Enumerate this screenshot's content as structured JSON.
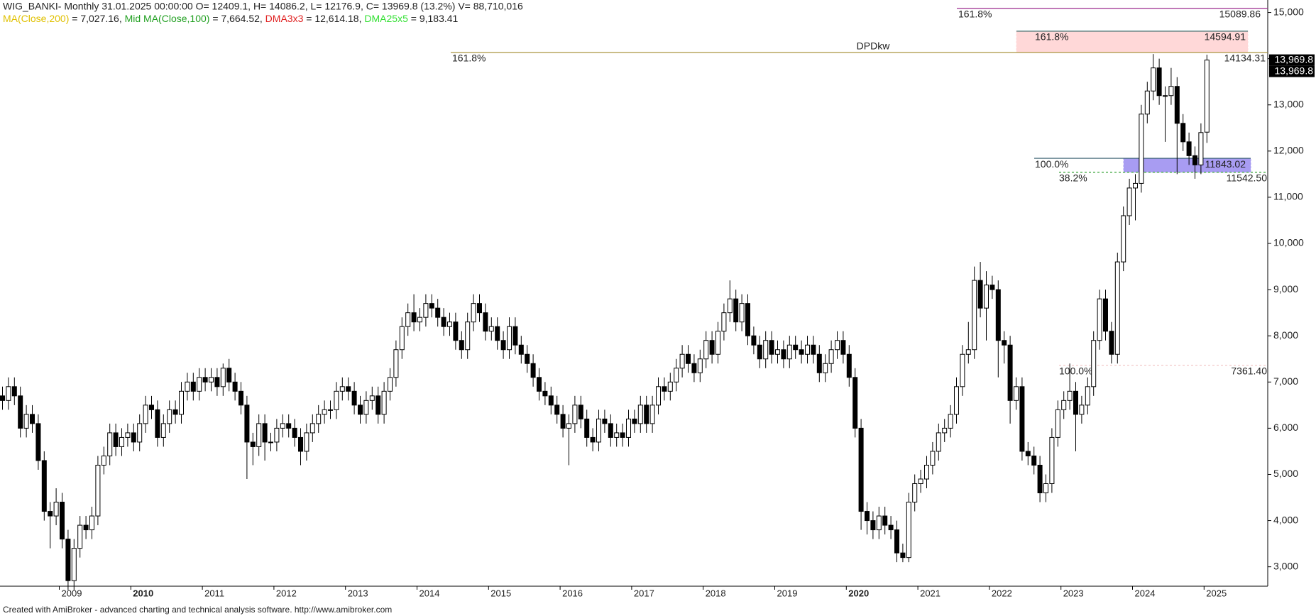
{
  "chart_data": {
    "type": "candlestick",
    "title": "WIG_BANKI- Monthly 31.01.2025 00:00:00 O= 12409.1, H= 14086.2, L= 12176.9, C= 13969.8 (13.2%) V= 88,710,016",
    "indicators": [
      {
        "name": "MA(Close,200)",
        "text": " = 7,027.16, ",
        "color": "#e0c000"
      },
      {
        "name": "Mid MA(Close,100)",
        "text": " = 7,664.52, ",
        "color": "#22a022"
      },
      {
        "name": "DMA3x3",
        "text": " = 12,614.18, ",
        "color": "#e02020"
      },
      {
        "name": "DMA25x5",
        "text": " = 9,183.41",
        "color": "#33e033"
      }
    ],
    "categories": [
      null,
      null,
      null,
      null,
      null,
      null,
      null,
      null,
      null,
      null,
      "2009",
      null,
      null,
      null,
      null,
      null,
      null,
      null,
      null,
      null,
      null,
      null,
      "2010",
      null,
      null,
      null,
      null,
      null,
      null,
      null,
      null,
      null,
      null,
      null,
      "2011",
      null,
      null,
      null,
      null,
      null,
      null,
      null,
      null,
      null,
      null,
      null,
      "2012",
      null,
      null,
      null,
      null,
      null,
      null,
      null,
      null,
      null,
      null,
      null,
      "2013",
      null,
      null,
      null,
      null,
      null,
      null,
      null,
      null,
      null,
      null,
      null,
      "2014",
      null,
      null,
      null,
      null,
      null,
      null,
      null,
      null,
      null,
      null,
      null,
      "2015",
      null,
      null,
      null,
      null,
      null,
      null,
      null,
      null,
      null,
      null,
      null,
      "2016",
      null,
      null,
      null,
      null,
      null,
      null,
      null,
      null,
      null,
      null,
      null,
      "2017",
      null,
      null,
      null,
      null,
      null,
      null,
      null,
      null,
      null,
      null,
      null,
      "2018",
      null,
      null,
      null,
      null,
      null,
      null,
      null,
      null,
      null,
      null,
      null,
      "2019",
      null,
      null,
      null,
      null,
      null,
      null,
      null,
      null,
      null,
      null,
      null,
      "2020",
      null,
      null,
      null,
      null,
      null,
      null,
      null,
      null,
      null,
      null,
      null,
      "2021",
      null,
      null,
      null,
      null,
      null,
      null,
      null,
      null,
      null,
      null,
      null,
      "2022",
      null,
      null,
      null,
      null,
      null,
      null,
      null,
      null,
      null,
      null,
      null,
      "2023",
      null,
      null,
      null,
      null,
      null,
      null,
      null,
      null,
      null,
      null,
      null,
      "2024",
      null,
      null,
      null,
      null,
      null,
      null,
      null,
      null,
      null,
      null,
      null,
      "2025"
    ],
    "open": [
      6700,
      6600,
      6900,
      6700,
      6000,
      6300,
      6100,
      5300,
      4200,
      4100,
      4400,
      3600,
      2700,
      3400,
      3900,
      3800,
      4100,
      5200,
      5400,
      5900,
      5600,
      5800,
      5900,
      5700,
      6100,
      6500,
      6400,
      5800,
      6100,
      6400,
      6300,
      6800,
      7000,
      6800,
      7100,
      7000,
      7100,
      6900,
      7300,
      7000,
      6800,
      6500,
      5700,
      5600,
      6100,
      5700,
      5700,
      6000,
      6100,
      6000,
      5800,
      5500,
      5900,
      6100,
      6300,
      6400,
      6400,
      6800,
      6900,
      6800,
      6500,
      6300,
      6600,
      6700,
      6300,
      6800,
      7100,
      7700,
      8200,
      8500,
      8300,
      8400,
      8700,
      8600,
      8400,
      8200,
      8300,
      7900,
      7700,
      8300,
      8700,
      8500,
      8100,
      8200,
      7900,
      7700,
      8200,
      7800,
      7600,
      7400,
      7100,
      6800,
      6700,
      6500,
      6300,
      6000,
      6100,
      6500,
      6200,
      5800,
      5700,
      6200,
      6100,
      5800,
      5900,
      5800,
      6200,
      6100,
      6500,
      6100,
      6500,
      6900,
      6800,
      7000,
      7300,
      7600,
      7400,
      7200,
      7500,
      7900,
      7600,
      8100,
      8500,
      8800,
      8300,
      8700,
      8000,
      7800,
      7500,
      7900,
      7600,
      7700,
      7500,
      7800,
      7700,
      7600,
      7800,
      7600,
      7200,
      7400,
      7700,
      7900,
      7600,
      7100,
      6000,
      4200,
      4000,
      3800,
      4100,
      3900,
      3800,
      3300,
      3200,
      4400,
      4800,
      4900,
      5200,
      5500,
      5900,
      6000,
      6300,
      6900,
      7600,
      7700,
      9200,
      8600,
      9100,
      9000,
      7900,
      7800,
      6600,
      6900,
      5500,
      5400,
      5200,
      4600,
      4800,
      5800,
      6400,
      6600,
      6800,
      6300,
      6500,
      6900,
      7900,
      8800,
      8100,
      7600,
      9600,
      10600,
      11200,
      11300,
      12800,
      13300,
      13800,
      13200,
      13200,
      13400,
      12600,
      12200,
      11900,
      11700,
      12409.1
    ],
    "high": [
      6900,
      7100,
      7100,
      6900,
      6500,
      6500,
      6300,
      5500,
      4400,
      4700,
      4600,
      3800,
      3600,
      4100,
      4100,
      4300,
      5400,
      5600,
      6100,
      6100,
      6000,
      6100,
      6100,
      6300,
      6700,
      6700,
      6600,
      6300,
      6600,
      6600,
      7000,
      7200,
      7200,
      7300,
      7300,
      7300,
      7300,
      7400,
      7500,
      7200,
      7000,
      6700,
      5900,
      6300,
      6300,
      5900,
      6200,
      6300,
      6300,
      6200,
      6000,
      6100,
      6300,
      6500,
      6600,
      6600,
      7000,
      7100,
      7100,
      7000,
      6700,
      6800,
      6900,
      6900,
      7000,
      7300,
      7900,
      8400,
      8700,
      8900,
      8600,
      8900,
      8900,
      8800,
      8600,
      8500,
      8500,
      8100,
      8500,
      8900,
      8900,
      8700,
      8400,
      8400,
      8100,
      8400,
      8400,
      8000,
      7800,
      7600,
      7300,
      7000,
      6900,
      6700,
      6500,
      6300,
      6700,
      6700,
      6400,
      6000,
      6400,
      6400,
      6300,
      6100,
      6100,
      6400,
      6400,
      6700,
      6700,
      6700,
      7100,
      7100,
      7200,
      7500,
      7800,
      7800,
      7600,
      7700,
      8100,
      8100,
      8300,
      8700,
      9200,
      9000,
      8900,
      8900,
      8200,
      8000,
      8100,
      8100,
      7900,
      7900,
      8000,
      8000,
      7900,
      8000,
      8000,
      7800,
      7600,
      7900,
      8100,
      8100,
      7800,
      7300,
      6200,
      4400,
      4200,
      4300,
      4300,
      4100,
      4000,
      3500,
      4600,
      5000,
      5100,
      5400,
      5700,
      6100,
      6200,
      6500,
      7100,
      7800,
      8300,
      9500,
      9600,
      9400,
      9300,
      9200,
      8100,
      8000,
      7100,
      7100,
      5700,
      5600,
      5400,
      5000,
      6000,
      6600,
      6800,
      7400,
      7000,
      6700,
      7100,
      8100,
      9000,
      9000,
      8300,
      9800,
      10800,
      11400,
      11500,
      13000,
      13500,
      14100,
      14000,
      13400,
      13800,
      13600,
      12800,
      12400,
      12100,
      12600,
      14086.2
    ],
    "low": [
      6400,
      6400,
      6500,
      5800,
      5800,
      5900,
      5100,
      4000,
      3400,
      3900,
      3400,
      2500,
      2500,
      3200,
      3600,
      3600,
      3900,
      5000,
      5200,
      5400,
      5400,
      5600,
      5500,
      5500,
      5900,
      6200,
      5600,
      5600,
      5900,
      6100,
      6100,
      6600,
      6600,
      6600,
      6800,
      6800,
      6700,
      6700,
      6800,
      6600,
      6300,
      4900,
      5200,
      5400,
      5300,
      5500,
      5500,
      5800,
      5800,
      5600,
      5200,
      5300,
      5700,
      5900,
      6100,
      6200,
      6200,
      6600,
      6600,
      6300,
      6100,
      6100,
      6400,
      6100,
      6100,
      6600,
      6900,
      7500,
      8000,
      8100,
      8100,
      8200,
      8400,
      8200,
      8000,
      8000,
      7700,
      7500,
      7500,
      8100,
      8300,
      7900,
      7900,
      7700,
      7500,
      7500,
      7600,
      7400,
      7200,
      6900,
      6600,
      6500,
      6300,
      6100,
      5800,
      5200,
      5900,
      6000,
      5600,
      5500,
      5500,
      5900,
      5600,
      5600,
      5600,
      5600,
      5900,
      5900,
      5900,
      5900,
      6300,
      6600,
      6600,
      6800,
      7100,
      7200,
      7000,
      7000,
      7300,
      7400,
      7400,
      7900,
      8300,
      8100,
      8100,
      7800,
      7600,
      7300,
      7300,
      7400,
      7400,
      7300,
      7300,
      7500,
      7400,
      7400,
      7400,
      7000,
      7000,
      7200,
      7500,
      7400,
      6900,
      5800,
      3800,
      3700,
      3600,
      3600,
      3700,
      3600,
      3100,
      3100,
      3100,
      4200,
      4600,
      4700,
      5000,
      5300,
      5700,
      5800,
      6100,
      6700,
      7400,
      7500,
      8400,
      7900,
      8800,
      7100,
      7400,
      6100,
      6400,
      5300,
      5200,
      5000,
      4400,
      4400,
      4600,
      5600,
      6200,
      6400,
      5500,
      6100,
      6300,
      6700,
      7700,
      7900,
      7400,
      7400,
      9400,
      10400,
      10500,
      11100,
      12600,
      13100,
      13000,
      12200,
      13000,
      11500,
      12000,
      11700,
      11400,
      11500,
      12176.9
    ],
    "close": [
      6600,
      6900,
      6700,
      6000,
      6300,
      6100,
      5300,
      4200,
      4100,
      4400,
      3600,
      2700,
      3400,
      3900,
      3800,
      4100,
      5200,
      5400,
      5900,
      5600,
      5800,
      5900,
      5700,
      6100,
      6500,
      6400,
      5800,
      6100,
      6400,
      6300,
      6800,
      7000,
      6800,
      7100,
      7000,
      7100,
      6900,
      7300,
      7000,
      6800,
      6500,
      5700,
      5600,
      6100,
      5700,
      5700,
      6000,
      6100,
      6000,
      5800,
      5500,
      5900,
      6100,
      6300,
      6400,
      6400,
      6800,
      6900,
      6800,
      6500,
      6300,
      6600,
      6700,
      6300,
      6800,
      7100,
      7700,
      8200,
      8500,
      8300,
      8400,
      8700,
      8600,
      8400,
      8200,
      8300,
      7900,
      7700,
      8300,
      8700,
      8500,
      8100,
      8200,
      7900,
      7700,
      8200,
      7800,
      7600,
      7400,
      7100,
      6800,
      6700,
      6500,
      6300,
      6000,
      6100,
      6500,
      6200,
      5800,
      5700,
      6200,
      6100,
      5800,
      5900,
      5800,
      6200,
      6100,
      6500,
      6100,
      6500,
      6900,
      6800,
      7000,
      7300,
      7600,
      7400,
      7200,
      7500,
      7900,
      7600,
      8100,
      8500,
      8800,
      8300,
      8700,
      8000,
      7800,
      7500,
      7900,
      7600,
      7700,
      7500,
      7800,
      7700,
      7600,
      7800,
      7600,
      7200,
      7400,
      7700,
      7900,
      7600,
      7100,
      6000,
      4200,
      4000,
      3800,
      4100,
      3900,
      3800,
      3300,
      3200,
      4400,
      4800,
      4900,
      5200,
      5500,
      5900,
      6000,
      6300,
      6900,
      7600,
      7700,
      9200,
      8600,
      9100,
      9000,
      7900,
      7800,
      6600,
      6900,
      5500,
      5400,
      5200,
      4600,
      4800,
      5800,
      6400,
      6600,
      6800,
      6300,
      6500,
      6900,
      7900,
      8800,
      8100,
      7600,
      9600,
      10600,
      11200,
      11300,
      12800,
      13300,
      13800,
      13200,
      13200,
      13400,
      12600,
      12200,
      11900,
      11700,
      12400,
      13969.8
    ],
    "up_color": "#ffffff",
    "down_color": "#000000",
    "ylim": [
      2580,
      15270
    ],
    "yticks": [
      {
        "value": 3000,
        "label": "3,000"
      },
      {
        "value": 4000,
        "label": "4,000"
      },
      {
        "value": 5000,
        "label": "5,000"
      },
      {
        "value": 6000,
        "label": "6,000"
      },
      {
        "value": 7000,
        "label": "7,000"
      },
      {
        "value": 8000,
        "label": "8,000"
      },
      {
        "value": 9000,
        "label": "9,000"
      },
      {
        "value": 10000,
        "label": "10,000"
      },
      {
        "value": 11000,
        "label": "11,000"
      },
      {
        "value": 12000,
        "label": "12,000"
      },
      {
        "value": 13000,
        "label": "13,000"
      },
      {
        "value": 14000,
        "label": "14,000"
      },
      {
        "value": 15000,
        "label": "15,000"
      }
    ],
    "levels": [
      {
        "label": "161.8%",
        "value": 15089.86,
        "color": "#9b2d8f"
      },
      {
        "label": "161.8%",
        "value": 14594.91,
        "color": "#2e6060",
        "fill": "#ffd8d8"
      },
      {
        "label": "161.8%",
        "name": "DPDkw",
        "value": 14134.31,
        "color": "#a08a2c"
      },
      {
        "label": "100.0%",
        "value": 11843.02,
        "color": "#2e5868",
        "fill": "#a89cf2"
      },
      {
        "label": "38.2%",
        "value": 11542.5,
        "value_label": "11542.50",
        "color": "#2ea02e"
      },
      {
        "label": "100.0%",
        "value": 7361.4,
        "value_label": "7361.40",
        "color": "#f2c8c8"
      }
    ],
    "price_labels": [
      {
        "value": 13969.8,
        "label": "13,969.8"
      },
      {
        "value": 13969.8,
        "label": "13,969.8"
      }
    ],
    "footer": "Created with AmiBroker - advanced charting and technical analysis software. http://www.amibroker.com"
  }
}
